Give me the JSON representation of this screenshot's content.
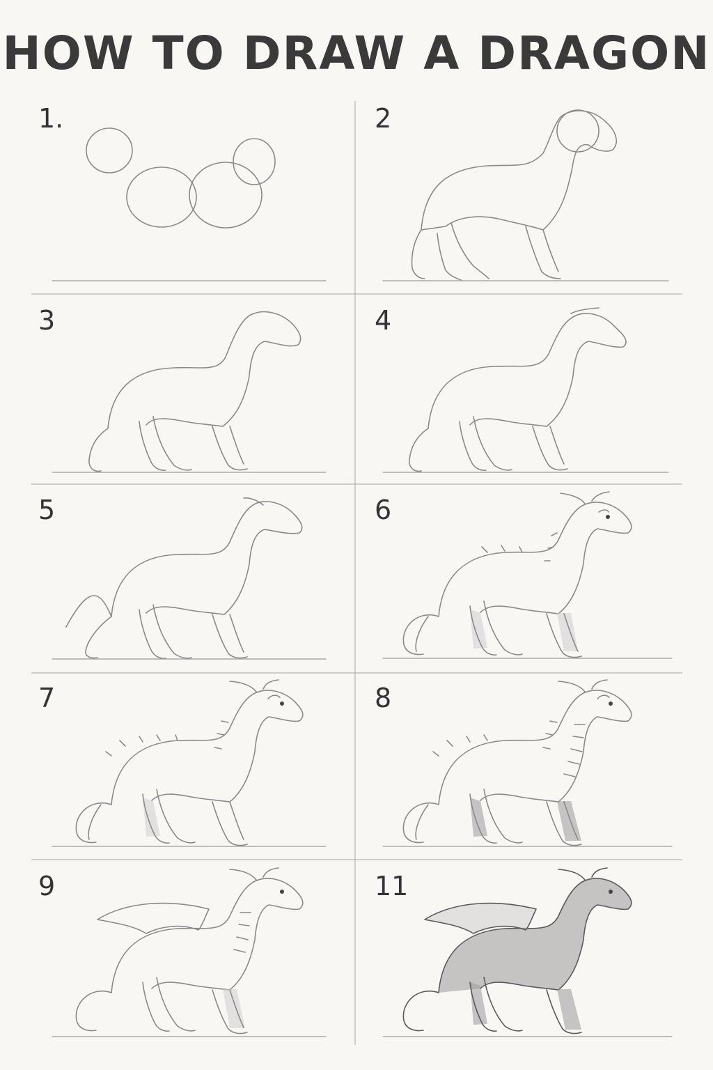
{
  "title": "HOW TO DRAW A DRAGON",
  "steps": [
    {
      "label": "1."
    },
    {
      "label": "2"
    },
    {
      "label": "3"
    },
    {
      "label": "4"
    },
    {
      "label": "5"
    },
    {
      "label": "6"
    },
    {
      "label": "7"
    },
    {
      "label": "8"
    },
    {
      "label": "9"
    },
    {
      "label": "11"
    }
  ],
  "colors": {
    "background": "#f8f7f4",
    "text": "#3a3a3a",
    "pencil": "#8a8a8a",
    "shading": "#9b9b9b"
  }
}
